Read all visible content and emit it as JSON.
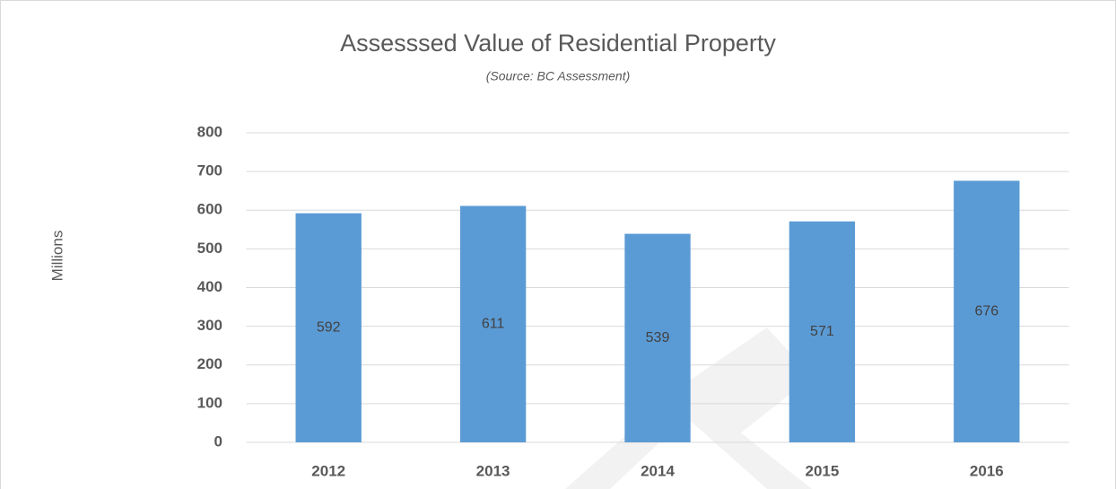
{
  "chart_data": {
    "type": "bar",
    "title": "Assesssed Value of Residential Property",
    "subtitle": "(Source: BC Assessment)",
    "y_label": "Millions",
    "categories": [
      "2012",
      "2013",
      "2014",
      "2015",
      "2016"
    ],
    "values": [
      592,
      611,
      539,
      571,
      676
    ],
    "color": "#5b9bd5",
    "ylim": [
      0,
      800
    ],
    "yticks": [
      0,
      100,
      200,
      300,
      400,
      500,
      600,
      700,
      800
    ],
    "grid": true
  }
}
